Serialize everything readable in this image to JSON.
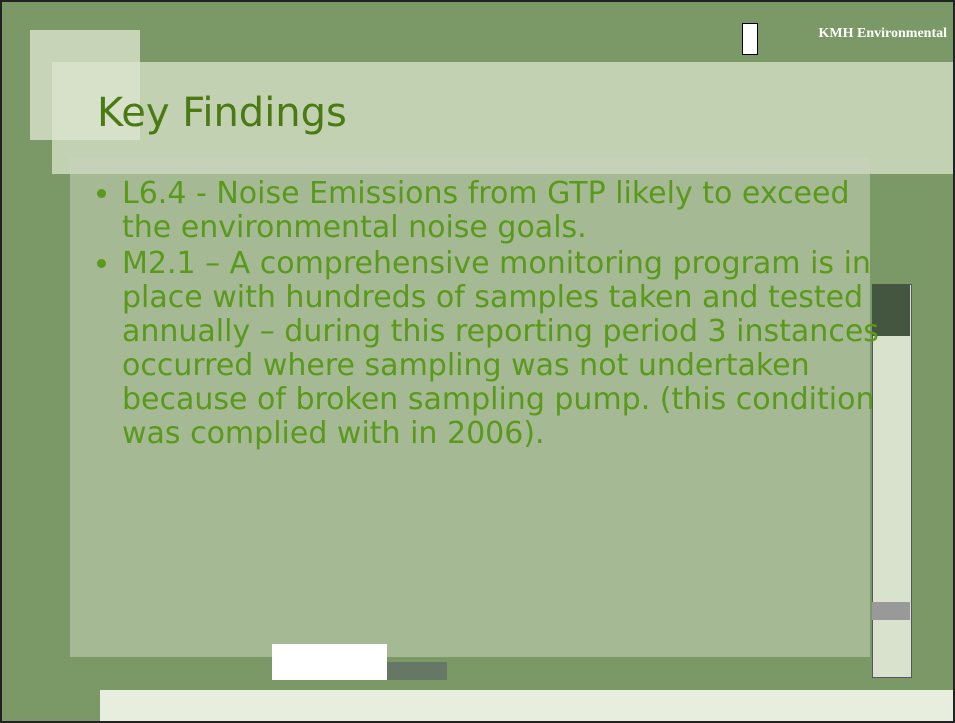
{
  "header": {
    "logo_text": "KMH Environmental"
  },
  "slide": {
    "title": "Key Findings",
    "bullets": [
      "L6.4 - Noise Emissions from GTP likely to exceed the environmental noise goals.",
      "M2.1 – A comprehensive monitoring program is in place with hundreds of samples taken and tested annually – during this reporting period 3 instances occurred where sampling was not undertaken because of broken sampling pump. (this condition was complied with in 2006)."
    ]
  }
}
